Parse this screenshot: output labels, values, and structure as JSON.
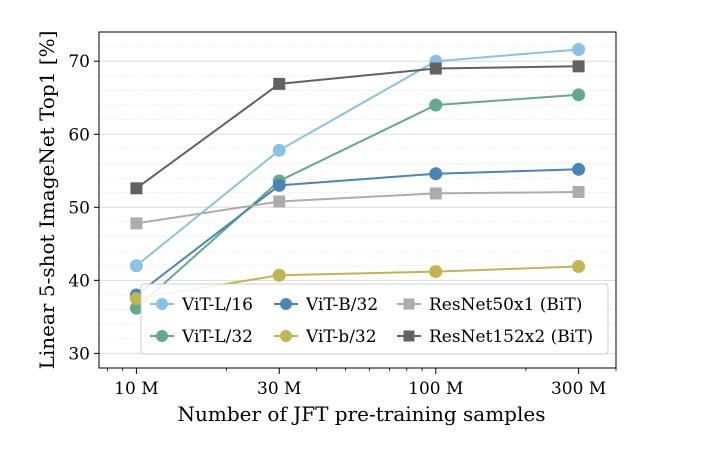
{
  "chart_data": {
    "type": "line",
    "title": "",
    "xlabel": "Number of JFT pre-training samples",
    "ylabel": "Linear 5-shot ImageNet Top1 [%]",
    "x_scale": "log",
    "x": [
      10,
      30,
      100,
      300
    ],
    "x_tick_labels": [
      "10 M",
      "30 M",
      "100 M",
      "300 M"
    ],
    "xlim": [
      7.5,
      400
    ],
    "ylim": [
      28,
      74
    ],
    "y_ticks": [
      30,
      40,
      50,
      60,
      70
    ],
    "y_tick_labels": [
      "30",
      "40",
      "50",
      "60",
      "70"
    ],
    "grid": "horizontal",
    "legend_position": "bottom-right",
    "series": [
      {
        "name": "ViT-L/16",
        "color": "#89c2e6",
        "marker": "circle",
        "values": [
          42.0,
          57.8,
          70.0,
          71.6
        ]
      },
      {
        "name": "ViT-L/32",
        "color": "#63a98b",
        "marker": "circle",
        "values": [
          36.2,
          53.6,
          64.0,
          65.4
        ]
      },
      {
        "name": "ViT-B/32",
        "color": "#4a85b8",
        "marker": "circle",
        "values": [
          38.0,
          53.0,
          54.6,
          55.2
        ]
      },
      {
        "name": "ViT-b/32",
        "color": "#c1b550",
        "marker": "circle",
        "values": [
          37.5,
          40.7,
          41.2,
          41.9
        ]
      },
      {
        "name": "ResNet50x1 (BiT)",
        "color": "#acacac",
        "marker": "square",
        "values": [
          47.8,
          50.8,
          51.9,
          52.1
        ]
      },
      {
        "name": "ResNet152x2 (BiT)",
        "color": "#626262",
        "marker": "square",
        "values": [
          52.6,
          66.9,
          69.0,
          69.3
        ]
      }
    ],
    "legend_order": [
      0,
      2,
      4,
      1,
      3,
      5
    ]
  }
}
